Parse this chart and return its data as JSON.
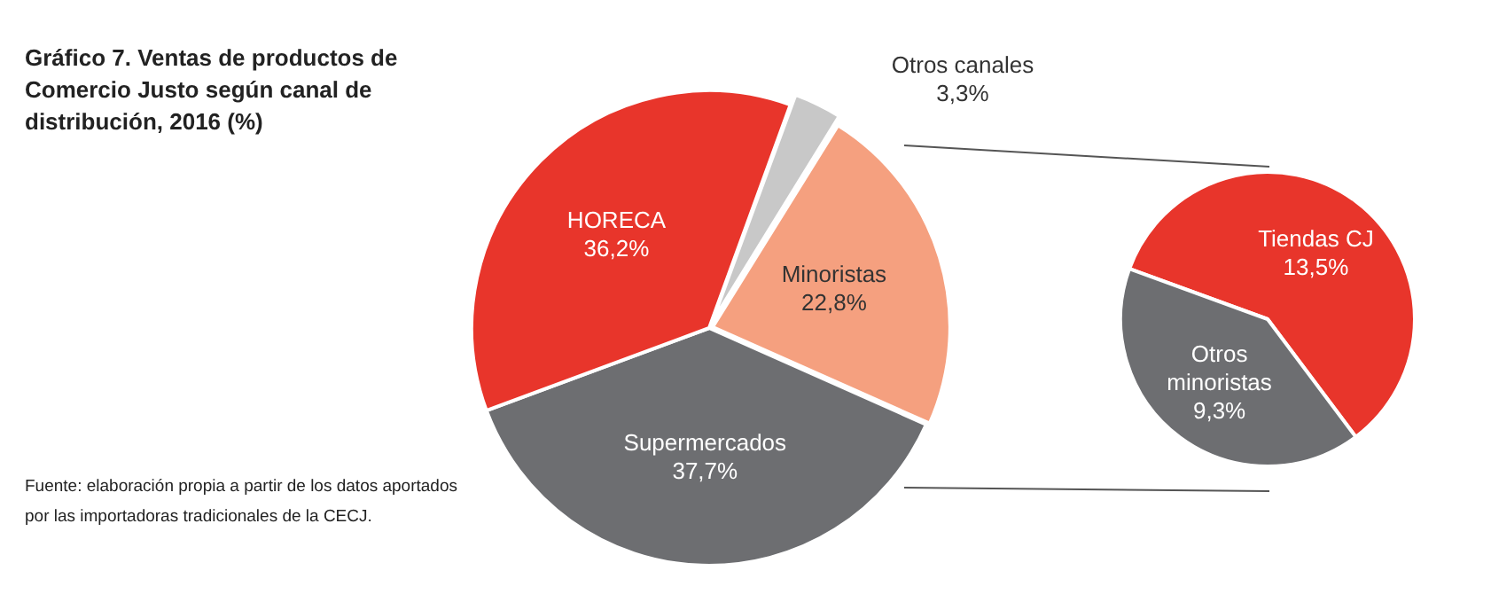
{
  "chart_data": [
    {
      "type": "pie",
      "title": "Gráfico 7. Ventas de productos de Comercio Justo según canal de distribución, 2016 (%)",
      "annotations": [
        "Fuente: elaboración propia a partir de los datos aportados por las importadoras tradicionales de la CECJ."
      ],
      "categories": [
        "Otros canales",
        "Minoristas",
        "Supermercados",
        "HORECA"
      ],
      "values": [
        3.3,
        22.8,
        37.7,
        36.2
      ],
      "value_labels": [
        "3,3%",
        "22,8%",
        "37,7%",
        "36,2%"
      ],
      "colors": [
        "#c8c8c8",
        "#f5a07f",
        "#6d6e71",
        "#e8352b"
      ],
      "legend": false
    },
    {
      "type": "pie",
      "categories": [
        "Tiendas CJ",
        "Otros minoristas"
      ],
      "values": [
        13.5,
        9.3
      ],
      "value_labels": [
        "13,5%",
        "9,3%"
      ],
      "colors": [
        "#e8352b",
        "#6d6e71"
      ],
      "legend": false
    }
  ]
}
